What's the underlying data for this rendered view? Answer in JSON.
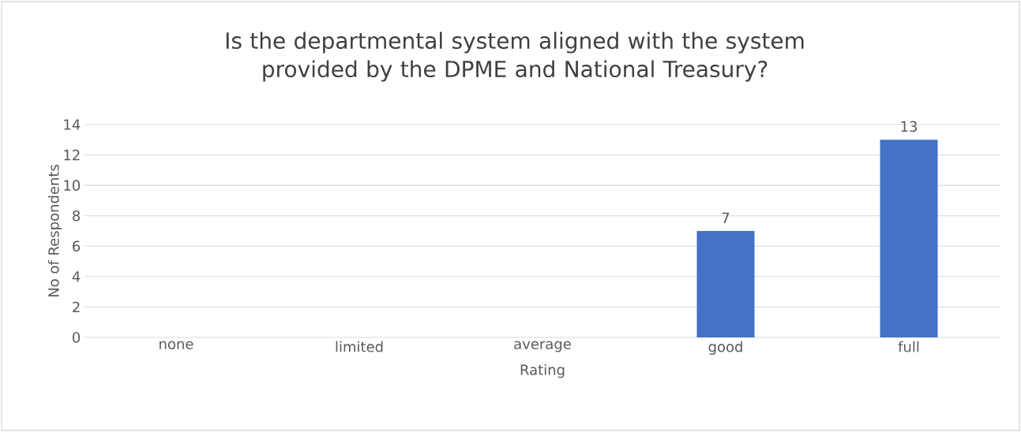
{
  "chart_data": {
    "type": "bar",
    "title": "Is the departmental system aligned with the system provided by the DPME and National Treasury?",
    "xlabel": "Rating",
    "ylabel": "No of Respondents",
    "categories": [
      "none",
      "limited",
      "average",
      "good",
      "full"
    ],
    "values": [
      0,
      0,
      0,
      7,
      13
    ],
    "value_labels": [
      null,
      null,
      null,
      "7",
      "13"
    ],
    "color": "#4472c4",
    "ylim": [
      0,
      14
    ],
    "yticks": [
      0,
      2,
      4,
      6,
      8,
      10,
      12,
      14
    ],
    "grid": "y"
  }
}
